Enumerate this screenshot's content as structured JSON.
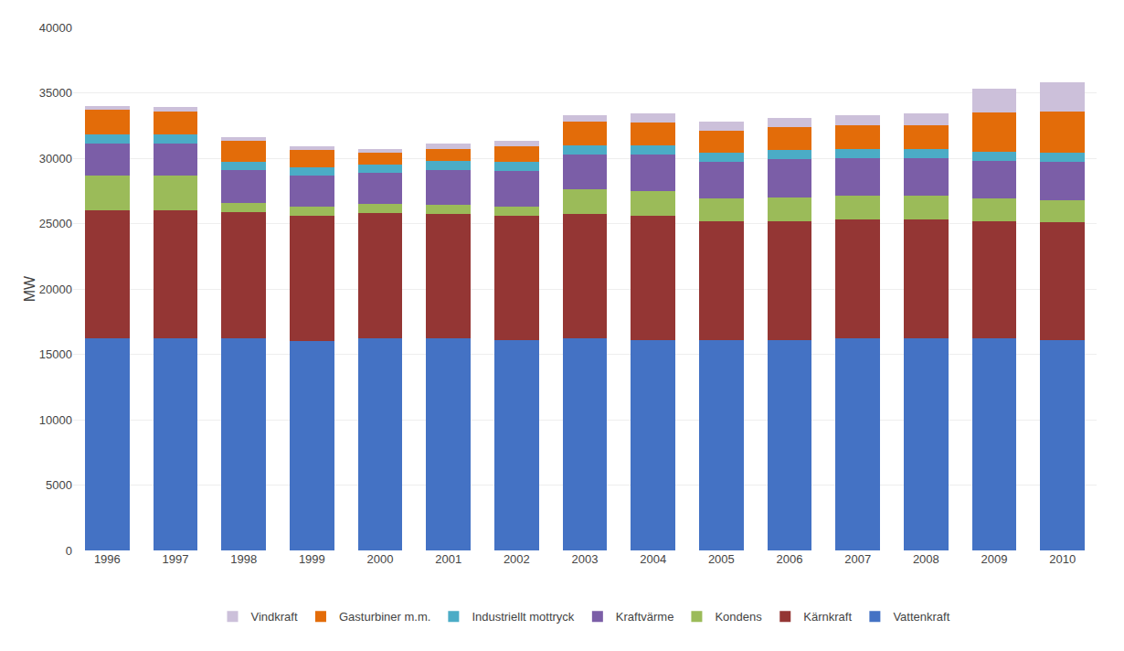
{
  "chart_data": {
    "type": "bar",
    "stacked": true,
    "categories": [
      "1996",
      "1997",
      "1998",
      "1999",
      "2000",
      "2001",
      "2002",
      "2003",
      "2004",
      "2005",
      "2006",
      "2007",
      "2008",
      "2009",
      "2010"
    ],
    "ylabel": "MW",
    "series": [
      {
        "name": "Vattenkraft",
        "color": "#4472C4",
        "values": [
          16200,
          16200,
          16200,
          16000,
          16200,
          16200,
          16100,
          16200,
          16100,
          16100,
          16100,
          16200,
          16200,
          16200,
          16100
        ]
      },
      {
        "name": "Kärnkraft",
        "color": "#943634",
        "values": [
          9800,
          9800,
          9700,
          9600,
          9600,
          9500,
          9500,
          9500,
          9500,
          9100,
          9100,
          9100,
          9100,
          9000,
          9000
        ]
      },
      {
        "name": "Kondens",
        "color": "#9BBB59",
        "values": [
          2700,
          2700,
          700,
          700,
          700,
          700,
          700,
          1900,
          1900,
          1700,
          1800,
          1800,
          1800,
          1700,
          1700
        ]
      },
      {
        "name": "Kraftvärme",
        "color": "#7B5EA7",
        "values": [
          2400,
          2400,
          2500,
          2400,
          2400,
          2700,
          2700,
          2700,
          2800,
          2800,
          2900,
          2900,
          2900,
          2900,
          2900
        ]
      },
      {
        "name": "Industriellt mottryck",
        "color": "#4BACC6",
        "values": [
          700,
          700,
          600,
          600,
          600,
          700,
          700,
          700,
          700,
          700,
          700,
          700,
          700,
          700,
          700
        ]
      },
      {
        "name": "Gasturbiner m.m.",
        "color": "#E36C09",
        "values": [
          1900,
          1800,
          1600,
          1300,
          900,
          900,
          1200,
          1800,
          1700,
          1700,
          1800,
          1800,
          1800,
          3000,
          3200
        ]
      },
      {
        "name": "Vindkraft",
        "color": "#CCC0DA",
        "values": [
          300,
          300,
          300,
          300,
          300,
          400,
          400,
          500,
          700,
          700,
          700,
          800,
          900,
          1800,
          2200
        ]
      }
    ],
    "ylim": [
      0,
      40000
    ],
    "yticks": [
      0,
      5000,
      10000,
      15000,
      20000,
      25000,
      30000,
      35000,
      40000
    ],
    "grid": true,
    "legend": "bottom"
  }
}
